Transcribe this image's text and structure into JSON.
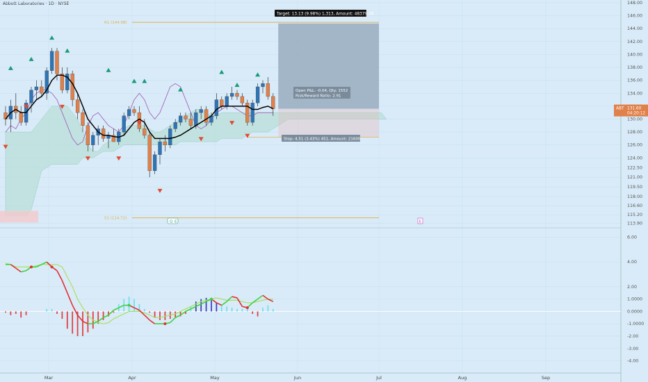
{
  "header": {
    "title": "Abbott Laboratories · 1D · NYSE"
  },
  "colors": {
    "background": "#d9ebf8",
    "up_candle": "#2f74b5",
    "down_candle": "#e0804a",
    "ma_line": "#000000",
    "purple_line": "#9b59b6",
    "cloud": "#b9e0d8",
    "cloud_red": "#f2c9cc",
    "pivot": "#e0b050",
    "arrow_up": "#1a9a7a",
    "arrow_down": "#e04a30",
    "macd_fast": "#e03030",
    "macd_slow": "#a8e060",
    "hist_pos": "#6fe0f0",
    "hist_neg": "#e04040",
    "hist_pos_dark": "#4040c0",
    "target_box": "#8fa4b8",
    "price_label": "#e0804a"
  },
  "position_tool": {
    "target_label": "Target: 13.13 (9.98%) 1,313, Amount: 48379.16",
    "open_pl_label": "Open P&L: -0.04, Qty: 1552",
    "risk_reward_label": "Risk/Reward Ratio: 2.91",
    "stop_label": "Stop: 4.51 (3.43%) 451, Amount: 21600"
  },
  "pivots": {
    "r1_label": "R1 (144.98)",
    "r1_value": 144.98,
    "s1_label": "S1 (114.72)",
    "s1_value": 114.72
  },
  "markers": {
    "earnings_left": "Q",
    "earnings_right": "E",
    "event_box": "E"
  },
  "price_badge": {
    "symbol": "ABT",
    "price": "131.60",
    "timer": "04:20:12",
    "value": 131.6
  },
  "chart_data": [
    {
      "type": "candlestick",
      "title": "Abbott Laboratories · 1D · NYSE",
      "x_labels": [
        "Mar",
        "Apr",
        "May",
        "Jun",
        "Jul",
        "Aug",
        "Sep"
      ],
      "y_ticks": [
        "148.00",
        "146.00",
        "144.00",
        "142.00",
        "140.00",
        "138.00",
        "136.00",
        "134.00",
        "132.00",
        "130.00",
        "128.00",
        "126.00",
        "124.00",
        "122.50",
        "121.00",
        "119.50",
        "118.00",
        "116.60",
        "115.20",
        "113.90"
      ],
      "ylim": [
        113.5,
        148
      ],
      "candles": [
        [
          131,
          132,
          129,
          130
        ],
        [
          130,
          133,
          128,
          132
        ],
        [
          132,
          134,
          130,
          131
        ],
        [
          131,
          132,
          129,
          129.5
        ],
        [
          129.5,
          133,
          129,
          132.5
        ],
        [
          132.5,
          135,
          131,
          134.5
        ],
        [
          134.5,
          136,
          133,
          135
        ],
        [
          135,
          136,
          133.5,
          134
        ],
        [
          134,
          138,
          133,
          137.5
        ],
        [
          137.5,
          141,
          137,
          140.5
        ],
        [
          140.5,
          141,
          136,
          137
        ],
        [
          137,
          138,
          134,
          134.5
        ],
        [
          134.5,
          138,
          134,
          137
        ],
        [
          137,
          137.5,
          132,
          133
        ],
        [
          133,
          134,
          130,
          131
        ],
        [
          131,
          131.5,
          128,
          129
        ],
        [
          129,
          129.5,
          125,
          126
        ],
        [
          126,
          128,
          125,
          127.5
        ],
        [
          127.5,
          129,
          126,
          128.5
        ],
        [
          128.5,
          129,
          126.5,
          127
        ],
        [
          127,
          128,
          125.5,
          127.5
        ],
        [
          127.5,
          128.5,
          126.5,
          126.5
        ],
        [
          126.5,
          128.5,
          126,
          128
        ],
        [
          128,
          131,
          127.5,
          130.5
        ],
        [
          130.5,
          132,
          130,
          131.5
        ],
        [
          131.5,
          132,
          130.5,
          131
        ],
        [
          131,
          132,
          128,
          128.5
        ],
        [
          128.5,
          130,
          127,
          127.5
        ],
        [
          127.5,
          128,
          121,
          122
        ],
        [
          122,
          125,
          121.5,
          124.5
        ],
        [
          124.5,
          127,
          123,
          126.5
        ],
        [
          126.5,
          127.5,
          125,
          126
        ],
        [
          126,
          129,
          125.5,
          128.5
        ],
        [
          128.5,
          130,
          128,
          129.5
        ],
        [
          129.5,
          131,
          129,
          130.5
        ],
        [
          130.5,
          131,
          129.5,
          130
        ],
        [
          130,
          131,
          128.5,
          129
        ],
        [
          129,
          131.5,
          128.5,
          131
        ],
        [
          131,
          132,
          130,
          131.5
        ],
        [
          131.5,
          132,
          129,
          129.5
        ],
        [
          129.5,
          131,
          129,
          130.5
        ],
        [
          130.5,
          134,
          130,
          133
        ],
        [
          133,
          133.5,
          131.5,
          132
        ],
        [
          132,
          134,
          131.5,
          133.5
        ],
        [
          133.5,
          135,
          133,
          134
        ],
        [
          134,
          134.5,
          133,
          133.5
        ],
        [
          133.5,
          134,
          132,
          132.5
        ],
        [
          132.5,
          133,
          129,
          129.5
        ],
        [
          129.5,
          133,
          129,
          132.5
        ],
        [
          132.5,
          135.5,
          132,
          135
        ],
        [
          135,
          136,
          134,
          135.5
        ],
        [
          135.5,
          136.5,
          133,
          133.5
        ],
        [
          133.5,
          134,
          130.5,
          131.6
        ]
      ],
      "ma_line": [
        130,
        131,
        131.5,
        131,
        131,
        132,
        133,
        133.5,
        134.5,
        136,
        136.8,
        136.8,
        136.5,
        135.5,
        134,
        132,
        130,
        129,
        128,
        127.5,
        127.5,
        127.3,
        127.2,
        127.5,
        128.5,
        129.5,
        130,
        129.5,
        128,
        127,
        127,
        127,
        127,
        127.2,
        127.5,
        128,
        128.5,
        129,
        129.5,
        130,
        130.5,
        131.5,
        132,
        132,
        132,
        132,
        132,
        132,
        131.5,
        131.5,
        131.8,
        132,
        131.6
      ],
      "purple_line": [
        128,
        129,
        128.5,
        130,
        131,
        133,
        134,
        134.5,
        134.5,
        134,
        133,
        131,
        129,
        127,
        126,
        126.5,
        129,
        130.5,
        131,
        130,
        129,
        128.5,
        128,
        129,
        131,
        133,
        134,
        133,
        131,
        130,
        131,
        133,
        135,
        135.5,
        135,
        133,
        131,
        129,
        128.5,
        129,
        130,
        131,
        131.5,
        132,
        132,
        131.5,
        131,
        130.5,
        130.5,
        131,
        131,
        131,
        131
      ],
      "cloud_top": [
        128,
        128,
        128,
        128,
        128,
        128,
        129,
        130,
        131,
        132,
        132,
        132,
        132,
        131,
        130,
        128,
        126,
        125,
        125,
        126,
        126.5,
        127,
        127.5,
        128.5,
        129,
        129,
        129,
        129,
        128.5,
        128,
        128,
        128.5,
        129,
        129.5,
        130,
        130.5,
        131,
        131.5,
        131.5,
        131,
        130.5,
        130.5,
        131,
        131,
        131,
        131,
        131,
        131,
        131,
        131,
        131,
        131,
        131,
        131,
        131,
        131,
        131,
        131,
        131,
        131,
        131,
        131,
        131,
        131,
        131,
        131,
        131,
        131,
        131,
        131,
        131,
        131,
        131,
        131,
        130
      ],
      "cloud_bottom": [
        115,
        115,
        115,
        115,
        115,
        116,
        119,
        122,
        122.5,
        123,
        123,
        123,
        123,
        123,
        123,
        124,
        124,
        124,
        124.5,
        125,
        125,
        125,
        125.5,
        126,
        126,
        126,
        126,
        126,
        126,
        126,
        126,
        126,
        126,
        126,
        126.5,
        126.5,
        126.5,
        126.5,
        126.5,
        126.5,
        126.5,
        126.5,
        127,
        127,
        127,
        127,
        127,
        127.5,
        128,
        128,
        128,
        128,
        128.5,
        129,
        129.5,
        130,
        130,
        130,
        130,
        130,
        130,
        130,
        130,
        130,
        130,
        130,
        130,
        130,
        130,
        130,
        130,
        130,
        130,
        130,
        130
      ],
      "up_arrows": [
        [
          1,
          137.8
        ],
        [
          5,
          139.2
        ],
        [
          9,
          142.5
        ],
        [
          12,
          140.5
        ],
        [
          20,
          137.5
        ],
        [
          25,
          135.8
        ],
        [
          27,
          135.8
        ],
        [
          34,
          134.5
        ],
        [
          42,
          137.2
        ],
        [
          45,
          135.2
        ],
        [
          49,
          136.8
        ]
      ],
      "down_arrows": [
        [
          0,
          125.8
        ],
        [
          4,
          132
        ],
        [
          11,
          132
        ],
        [
          16,
          124
        ],
        [
          22,
          124
        ],
        [
          26,
          129.5
        ],
        [
          30,
          119
        ],
        [
          38,
          127
        ],
        [
          44,
          129.5
        ],
        [
          47,
          127.5
        ]
      ],
      "last_price": 131.6,
      "target_level": 144.8,
      "stop_level": 127.2
    },
    {
      "type": "macd",
      "y_ticks": [
        "6.00",
        "4.00",
        "2.00",
        "1.0000",
        "0.0000",
        "-1.0000",
        "-2.00",
        "-3.00",
        "-4.00"
      ],
      "ylim": [
        -4.7,
        6.6
      ],
      "fast": [
        3.8,
        3.8,
        3.5,
        3.2,
        3.3,
        3.6,
        3.6,
        3.8,
        4,
        3.6,
        3.3,
        2.5,
        1.5,
        0.5,
        -0.3,
        -0.8,
        -1,
        -1,
        -0.8,
        -0.5,
        -0.3,
        0.1,
        0.3,
        0.5,
        0.5,
        0.3,
        0.1,
        -0.3,
        -0.7,
        -1,
        -1,
        -1,
        -0.9,
        -0.5,
        -0.3,
        0,
        0.2,
        0.4,
        0.6,
        0.8,
        1,
        0.7,
        0.5,
        0.8,
        1.2,
        1.1,
        0.4,
        0.3,
        0.7,
        1,
        1.3,
        1,
        0.8
      ],
      "slow": [
        3.9,
        3.8,
        3.6,
        3.6,
        3.6,
        3.6,
        3.7,
        3.8,
        3.8,
        3.8,
        3.8,
        3.6,
        2.8,
        2,
        1,
        0.3,
        -0.3,
        -0.7,
        -0.9,
        -1,
        -0.9,
        -0.6,
        -0.4,
        -0.2,
        0,
        0,
        0,
        -0.1,
        -0.3,
        -0.5,
        -0.5,
        -0.4,
        -0.3,
        -0.2,
        0,
        0.2,
        0.4,
        0.6,
        0.8,
        0.9,
        1,
        1.1,
        1,
        0.9,
        0.9,
        0.9,
        0.8,
        0.7,
        0.7,
        0.8,
        0.9,
        1,
        1
      ],
      "histogram": [
        -0.1,
        -0.3,
        -0.2,
        -0.5,
        -0.3,
        0,
        0,
        0,
        0.2,
        0.2,
        -0.2,
        -0.6,
        -1.4,
        -1.8,
        -2,
        -2,
        -1.7,
        -1.4,
        -1,
        -0.7,
        -0.4,
        -0.1,
        0.6,
        1,
        1.2,
        1,
        0.6,
        0.2,
        -0.1,
        -0.5,
        -0.7,
        -0.7,
        -0.6,
        -0.5,
        -0.4,
        -0.2,
        0.4,
        0.8,
        1,
        1.1,
        1,
        0.7,
        0.5,
        0.4,
        0.3,
        0.2,
        0.2,
        0.2,
        -0.2,
        -0.4,
        0.3,
        0.5,
        0.2
      ]
    }
  ]
}
